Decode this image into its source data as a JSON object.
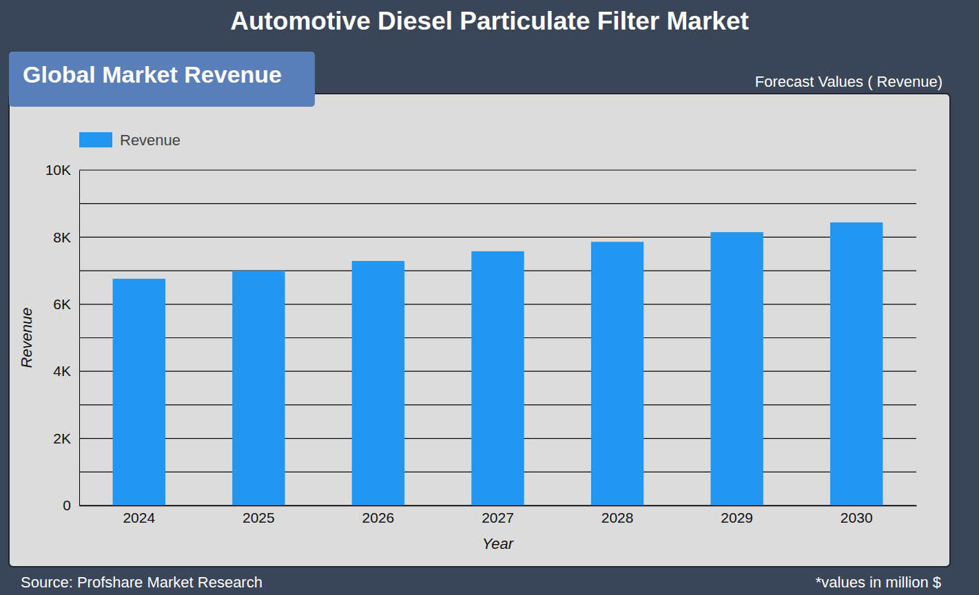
{
  "chart_data": {
    "type": "bar",
    "title": "Automotive Diesel Particulate Filter Market",
    "subtitle": "Global Market Revenue",
    "annotations": [
      "Forecast Values ( Revenue)",
      "Source: Profshare Market Research",
      "*values in million $"
    ],
    "x_label": "Year",
    "y_label": "Revenue",
    "categories": [
      "2024",
      "2025",
      "2026",
      "2027",
      "2028",
      "2029",
      "2030"
    ],
    "series": [
      {
        "name": "Revenue",
        "color": "#2196f3",
        "values": [
          6760,
          7000,
          7290,
          7580,
          7860,
          8150,
          8440
        ]
      }
    ],
    "ylim": [
      0,
      10000
    ],
    "yticks": [
      0,
      {
        "value": 2000,
        "label": "2K"
      },
      {
        "value": 4000,
        "label": "4K"
      },
      {
        "value": 6000,
        "label": "6K"
      },
      {
        "value": 8000,
        "label": "8K"
      },
      {
        "value": 10000,
        "label": "10K"
      }
    ],
    "grid": true,
    "legend": "top-left"
  }
}
